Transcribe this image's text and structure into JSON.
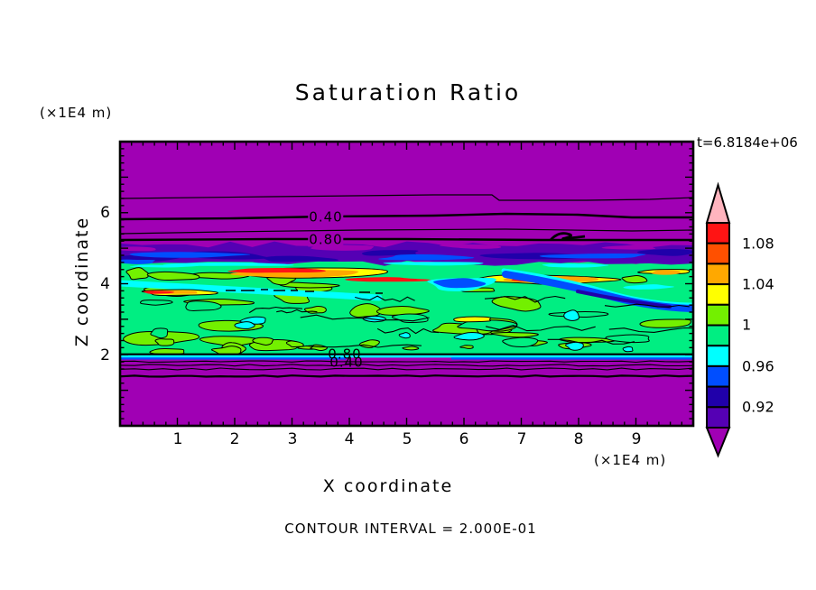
{
  "title": "Saturation Ratio",
  "time_label": "t=6.8184e+06",
  "footer": "CONTOUR INTERVAL = 2.000E-01",
  "x_axis": {
    "label": "X coordinate",
    "unit": "(×1E4 m)",
    "ticks": [
      "1",
      "2",
      "3",
      "4",
      "5",
      "6",
      "7",
      "8",
      "9"
    ]
  },
  "y_axis": {
    "label": "Z coordinate",
    "unit": "(×1E4 m)",
    "ticks": [
      "6",
      "4",
      "2"
    ]
  },
  "contour_labels": {
    "upper_040": "0.40",
    "upper_080": "0.80",
    "lower_080": "0.80",
    "lower_040": "0.40"
  },
  "colorbar": {
    "labels": [
      "1.08",
      "1.04",
      "1",
      "0.96",
      "0.92"
    ],
    "colors": [
      "#FFB4BE",
      "#FF1414",
      "#FF5000",
      "#FFA800",
      "#FFFF00",
      "#73F000",
      "#00EE82",
      "#00FFFF",
      "#004EFF",
      "#2000AA",
      "#5500B4",
      "#A000B4"
    ]
  },
  "palette": {
    "purple": "#A000B4",
    "dark_violet": "#5500B4",
    "navy": "#2000AA",
    "blue": "#004EFF",
    "cyan": "#00FFFF",
    "spring_green": "#00EE82",
    "green_yellow": "#73F000",
    "yellow": "#FFFF00",
    "orange": "#FFA800",
    "orange_red": "#FF5000",
    "red": "#FF1414",
    "pink": "#FFB4BE",
    "line": "#000000"
  },
  "chart_data": {
    "type": "heatmap",
    "title": "Saturation Ratio",
    "xlabel": "X coordinate (×1E4 m)",
    "ylabel": "Z coordinate (×1E4 m)",
    "xlim": [
      0,
      10
    ],
    "ylim": [
      0,
      8
    ],
    "x_ticks": [
      1,
      2,
      3,
      4,
      5,
      6,
      7,
      8,
      9
    ],
    "y_ticks": [
      2,
      4,
      6
    ],
    "annotation_time": "t=6.8184e+06",
    "contour_interval": 0.2,
    "labeled_line_contours": [
      0.4,
      0.8
    ],
    "colorbar_level_bounds": [
      0.9,
      0.92,
      0.94,
      0.96,
      0.98,
      1.0,
      1.02,
      1.04,
      1.06,
      1.08,
      1.1
    ],
    "colorbar_labeled_values": [
      1.08,
      1.04,
      1,
      0.96,
      0.92
    ],
    "legend_position": "right",
    "grid": false,
    "field_summary": [
      {
        "z_range": [
          5.6,
          8.0
        ],
        "value": "< 0.4",
        "appearance": "uniform purple"
      },
      {
        "z_range": [
          5.1,
          5.6
        ],
        "value": "0.4 - 0.8",
        "appearance": "purple with labeled line contours 0.40, 0.80"
      },
      {
        "z_range": [
          4.6,
          5.1
        ],
        "value": "0.90 - 0.96",
        "appearance": "indigo/navy/blue band"
      },
      {
        "z_range": [
          2.0,
          4.7
        ],
        "value": "0.96 - 1.10",
        "appearance": "turbulent green/cyan layer with yellow-orange-red streaks near z≈4.2"
      },
      {
        "z_range": [
          1.8,
          2.0
        ],
        "value": "0.8 - 1.0",
        "appearance": "thin cyan/blue strip, overlapping labels 0.80 and 0.40"
      },
      {
        "z_range": [
          0.0,
          1.8
        ],
        "value": "< 0.4",
        "appearance": "uniform purple"
      }
    ]
  }
}
